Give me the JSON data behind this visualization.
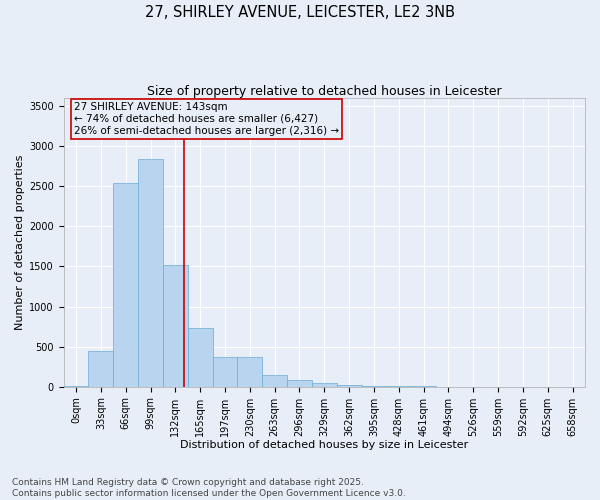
{
  "title": "27, SHIRLEY AVENUE, LEICESTER, LE2 3NB",
  "subtitle": "Size of property relative to detached houses in Leicester",
  "xlabel": "Distribution of detached houses by size in Leicester",
  "ylabel": "Number of detached properties",
  "footer_line1": "Contains HM Land Registry data © Crown copyright and database right 2025.",
  "footer_line2": "Contains public sector information licensed under the Open Government Licence v3.0.",
  "annotation_line1": "27 SHIRLEY AVENUE: 143sqm",
  "annotation_line2": "← 74% of detached houses are smaller (6,427)",
  "annotation_line3": "26% of semi-detached houses are larger (2,316) →",
  "bar_color": "#b8d4ee",
  "bar_edge_color": "#6aaad4",
  "vline_color": "#cc0000",
  "annotation_box_edge_color": "#cc0000",
  "background_color": "#e8eef8",
  "grid_color": "#ffffff",
  "categories": [
    "0sqm",
    "33sqm",
    "66sqm",
    "99sqm",
    "132sqm",
    "165sqm",
    "197sqm",
    "230sqm",
    "263sqm",
    "296sqm",
    "329sqm",
    "362sqm",
    "395sqm",
    "428sqm",
    "461sqm",
    "494sqm",
    "526sqm",
    "559sqm",
    "592sqm",
    "625sqm",
    "658sqm"
  ],
  "values": [
    10,
    450,
    2540,
    2840,
    1520,
    730,
    370,
    370,
    150,
    85,
    50,
    20,
    15,
    5,
    3,
    2,
    1,
    1,
    0,
    0,
    0
  ],
  "bar_width": 1.0,
  "ylim": [
    0,
    3600
  ],
  "yticks": [
    0,
    500,
    1000,
    1500,
    2000,
    2500,
    3000,
    3500
  ],
  "vline_x": 4.33,
  "title_fontsize": 10.5,
  "subtitle_fontsize": 9,
  "label_fontsize": 8,
  "tick_fontsize": 7,
  "annotation_fontsize": 7.5,
  "footer_fontsize": 6.5
}
